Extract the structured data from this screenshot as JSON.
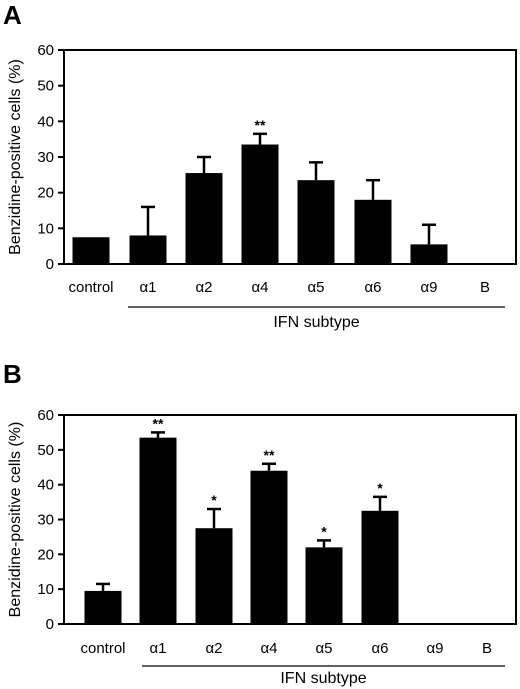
{
  "chart_data": [
    {
      "type": "bar",
      "panel": "A",
      "ylabel": "Benzidine-positive cells (%)",
      "xlabel": "IFN subtype",
      "ylim": [
        0,
        60
      ],
      "yticks": [
        "0",
        "10",
        "20",
        "30",
        "40",
        "50",
        "60"
      ],
      "categories": [
        "control",
        "α1",
        "α2",
        "α4",
        "α5",
        "α6",
        "α9",
        "B"
      ],
      "values": [
        7.5,
        8,
        25.5,
        33.5,
        23.5,
        18,
        5.5,
        0
      ],
      "errors": [
        0,
        8,
        4.5,
        3,
        5,
        5.5,
        5.5,
        0
      ],
      "significance": [
        "",
        "",
        "",
        "**",
        "",
        "",
        "",
        ""
      ],
      "grid": false,
      "bar_color": "#000000"
    },
    {
      "type": "bar",
      "panel": "B",
      "ylabel": "Benzidine-positive cells (%)",
      "xlabel": "IFN subtype",
      "ylim": [
        0,
        60
      ],
      "yticks": [
        "0",
        "10",
        "20",
        "30",
        "40",
        "50",
        "60"
      ],
      "categories": [
        "control",
        "α1",
        "α2",
        "α4",
        "α5",
        "α6",
        "α9",
        "B"
      ],
      "values": [
        9.5,
        53.5,
        27.5,
        44,
        22,
        32.5,
        0,
        0
      ],
      "errors": [
        2,
        1.5,
        5.5,
        2,
        2,
        4,
        0,
        0
      ],
      "significance": [
        "",
        "**",
        "*",
        "**",
        "*",
        "*",
        "",
        ""
      ],
      "grid": false,
      "bar_color": "#000000"
    }
  ]
}
